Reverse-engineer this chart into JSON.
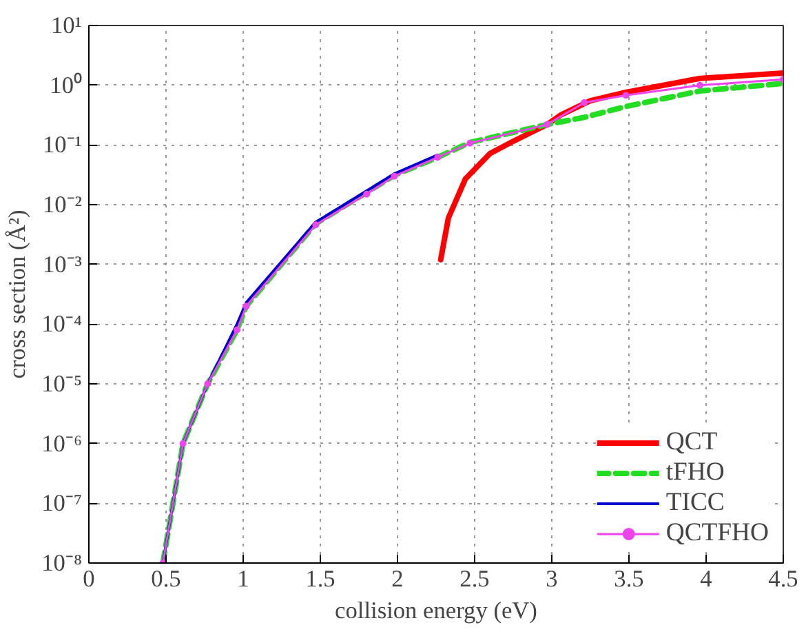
{
  "chart_data": {
    "type": "line",
    "xlabel": "collision energy (eV)",
    "ylabel": "cross section (Å²)",
    "xlim": [
      0,
      4.5
    ],
    "xticks": [
      0,
      0.5,
      1,
      1.5,
      2,
      2.5,
      3,
      3.5,
      4,
      4.5
    ],
    "ylim": [
      1e-08,
      10
    ],
    "yticks": [
      {
        "value": 1e-08,
        "label": "10⁻⁸"
      },
      {
        "value": 1e-07,
        "label": "10⁻⁷"
      },
      {
        "value": 1e-06,
        "label": "10⁻⁶"
      },
      {
        "value": 1e-05,
        "label": "10⁻⁵"
      },
      {
        "value": 0.0001,
        "label": "10⁻⁴"
      },
      {
        "value": 0.001,
        "label": "10⁻³"
      },
      {
        "value": 0.01,
        "label": "10⁻²"
      },
      {
        "value": 0.1,
        "label": "10⁻¹"
      },
      {
        "value": 1,
        "label": "10⁰"
      },
      {
        "value": 10,
        "label": "10¹"
      }
    ],
    "log": "y",
    "grid": true,
    "legend": "bottom right",
    "series": [
      {
        "name": "QCT",
        "color": "#ff0000",
        "line_style": "solid",
        "marker": "none",
        "x": [
          2.28,
          2.33,
          2.44,
          2.6,
          2.75,
          2.97,
          3.06,
          3.25,
          3.48,
          3.96,
          4.5
        ],
        "values": [
          0.0012,
          0.006,
          0.027,
          0.072,
          0.115,
          0.22,
          0.32,
          0.55,
          0.76,
          1.3,
          1.6
        ]
      },
      {
        "name": "tFHO",
        "color": "#22dd22",
        "line_style": "dashed",
        "marker": "none",
        "x": [
          0.48,
          0.61,
          0.77,
          0.96,
          1.02,
          1.47,
          1.8,
          1.98,
          2.26,
          2.47,
          2.97,
          3.21,
          3.48,
          3.96,
          4.5
        ],
        "values": [
          1e-08,
          1e-06,
          1e-05,
          8e-05,
          0.0002,
          0.0048,
          0.016,
          0.031,
          0.062,
          0.11,
          0.22,
          0.29,
          0.44,
          0.8,
          1.07
        ]
      },
      {
        "name": "TICC",
        "color": "#0000cc",
        "line_style": "solid",
        "marker": "none",
        "x": [
          0.48,
          0.61,
          0.77,
          0.96,
          1.02,
          1.47,
          1.8,
          1.98,
          2.26
        ],
        "values": [
          1e-08,
          1e-06,
          1e-05,
          0.0001,
          0.00023,
          0.0051,
          0.017,
          0.033,
          0.068
        ]
      },
      {
        "name": "QCTFHO",
        "color": "#ee44ee",
        "line_style": "solid",
        "marker": "circle",
        "x": [
          0.48,
          0.61,
          0.77,
          0.96,
          1.02,
          1.47,
          1.8,
          1.98,
          2.26,
          2.47,
          2.97,
          3.21,
          3.48,
          3.96,
          4.5
        ],
        "values": [
          1e-08,
          1e-06,
          1e-05,
          8e-05,
          0.0002,
          0.0046,
          0.015,
          0.03,
          0.062,
          0.107,
          0.22,
          0.51,
          0.68,
          1.0,
          1.25
        ]
      }
    ]
  }
}
